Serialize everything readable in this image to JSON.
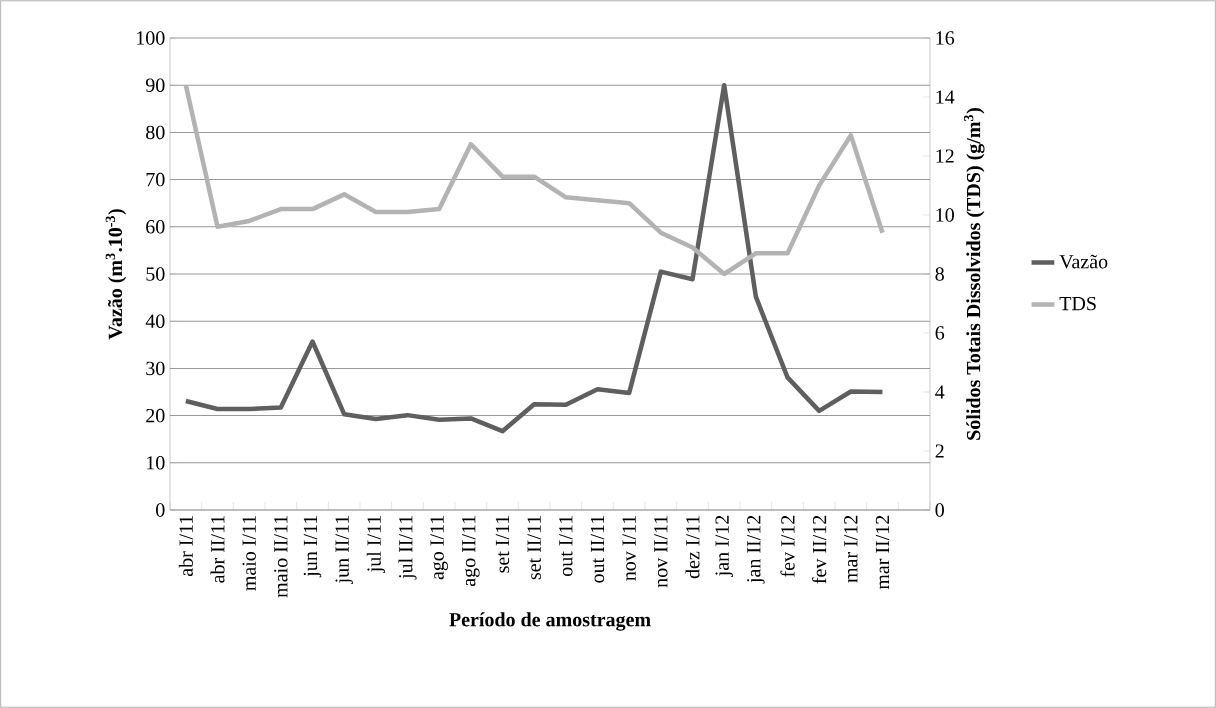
{
  "chart_data": {
    "type": "line",
    "xlabel": "Período de amostragem",
    "ylabel": "**Vazão (m$^{3}$.10$^{-3}$)**",
    "y2label": "**Sólidos Totais Dissolvidos (TDS) (g/m$^{3}$)**",
    "categories": [
      "abr I/11",
      "abr II/11",
      "maio I/11",
      "maio II/11",
      "jun I/11",
      "jun II/11",
      "jul I/11",
      "jul II/11",
      "ago I/11",
      "ago II/11",
      "set I/11",
      "set II/11",
      "out I/11",
      "out II/11",
      "nov I/11",
      "nov II/11",
      "dez I/11",
      "jan I/12",
      "jan II/12",
      "fev I/12",
      "fev II/12",
      "mar I/12",
      "mar II/12",
      null
    ],
    "series": [
      {
        "name": "Vazão",
        "color": "#5f5f5f",
        "values": [
          23.1,
          21.4,
          21.4,
          21.7,
          35.7,
          20.3,
          19.3,
          20.1,
          19.1,
          19.4,
          16.7,
          22.4,
          22.3,
          25.6,
          24.8,
          50.5,
          48.9,
          90.0,
          45.2,
          28.1,
          21.0,
          25.1,
          25.0,
          null
        ]
      },
      {
        "name": "TDS",
        "color": "#b3b3b3",
        "axis": "y2",
        "values": [
          14.4,
          9.6,
          9.8,
          10.2,
          10.2,
          10.7,
          10.1,
          10.1,
          10.2,
          12.4,
          11.3,
          11.3,
          10.6,
          10.5,
          10.4,
          9.4,
          8.9,
          8.0,
          8.7,
          8.7,
          11.0,
          12.7,
          9.4,
          null
        ]
      }
    ],
    "ylim": [
      0,
      100
    ],
    "yticks": [
      0,
      10,
      20,
      30,
      40,
      50,
      60,
      70,
      80,
      90,
      100
    ],
    "y2lim": [
      0,
      16
    ],
    "y2ticks": [
      0,
      2,
      4,
      6,
      8,
      10,
      12,
      14,
      16
    ],
    "grid": "y",
    "legend": "right",
    "marker": "none",
    "line_style": "solid"
  }
}
